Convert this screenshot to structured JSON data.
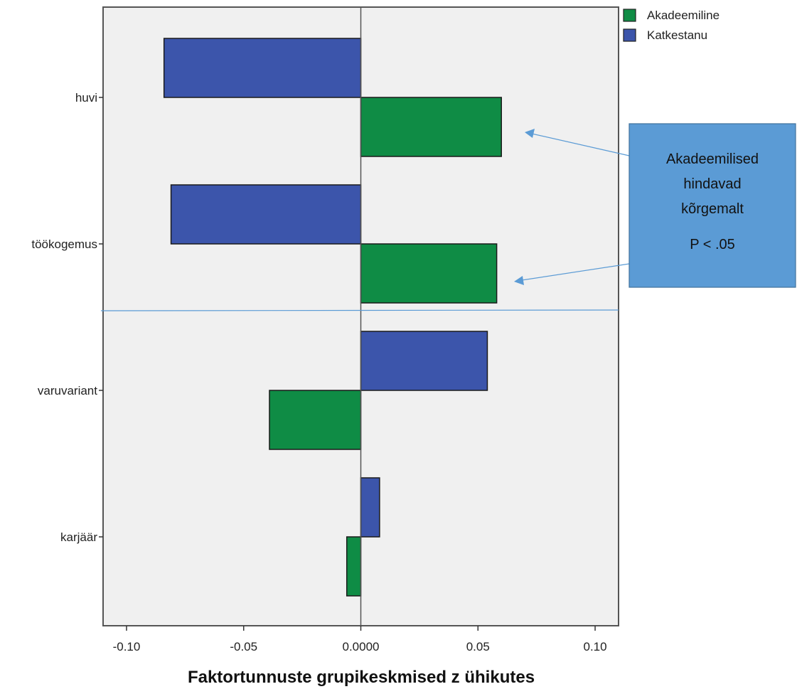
{
  "chart_data": {
    "type": "bar",
    "orientation": "horizontal",
    "categories": [
      "huvi",
      "töökogemus",
      "varuvariant",
      "karjäär"
    ],
    "series": [
      {
        "name": "Akadeemiline",
        "color": "#0f8c45",
        "values": [
          0.06,
          0.058,
          -0.039,
          -0.006
        ]
      },
      {
        "name": "Katkestanu",
        "color": "#3c55ab",
        "values": [
          -0.084,
          -0.081,
          0.054,
          0.008
        ]
      }
    ],
    "xlabel": "Faktortunnuste grupikeskmised z ühikutes",
    "xlim": [
      -0.11,
      0.11
    ],
    "x_ticks": [
      {
        "value": -0.1,
        "label": "-0.10"
      },
      {
        "value": -0.05,
        "label": "-0.05"
      },
      {
        "value": 0,
        "label": "0.0000"
      },
      {
        "value": 0.05,
        "label": "0.05"
      },
      {
        "value": 0.1,
        "label": "0.10"
      }
    ],
    "legend_position": "top-right",
    "grid": false,
    "annotation": {
      "lines": [
        "Akadeemilised",
        "hindavad",
        "kõrgemalt"
      ],
      "note": "P < .05",
      "box_color": "#5b9bd5"
    }
  }
}
